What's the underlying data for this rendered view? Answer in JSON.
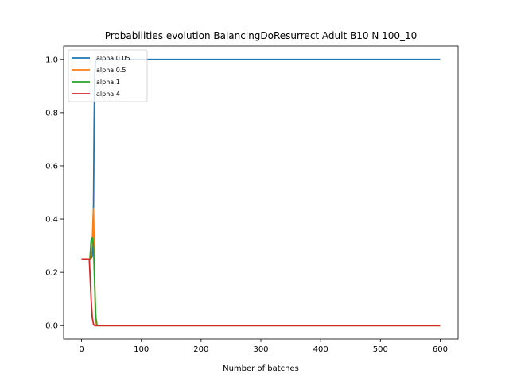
{
  "chart_data": {
    "type": "line",
    "title": "Probabilities evolution BalancingDoResurrect Adult B10 N 100_10",
    "xlabel": "Number of batches",
    "ylabel": "",
    "xlim": [
      -30,
      630
    ],
    "ylim": [
      -0.05,
      1.05
    ],
    "xticks": [
      0,
      100,
      200,
      300,
      400,
      500,
      600
    ],
    "yticks": [
      0.0,
      0.2,
      0.4,
      0.6,
      0.8,
      1.0
    ],
    "xtick_labels": [
      "0",
      "100",
      "200",
      "300",
      "400",
      "500",
      "600"
    ],
    "ytick_labels": [
      "0.0",
      "0.2",
      "0.4",
      "0.6",
      "0.8",
      "1.0"
    ],
    "grid": false,
    "legend": "top-left",
    "series": [
      {
        "name": "alpha 0.05",
        "color": "#1f77b4",
        "x": [
          0,
          15,
          18,
          20,
          21,
          22,
          24,
          30,
          600
        ],
        "y": [
          0.25,
          0.25,
          0.26,
          0.45,
          0.75,
          0.95,
          1.0,
          1.0,
          1.0
        ]
      },
      {
        "name": "alpha 0.5",
        "color": "#ff7f0e",
        "x": [
          0,
          15,
          18,
          20,
          21,
          23,
          25,
          30,
          600
        ],
        "y": [
          0.25,
          0.25,
          0.32,
          0.44,
          0.3,
          0.05,
          0.0,
          0.0,
          0.0
        ]
      },
      {
        "name": "alpha 1",
        "color": "#2ca02c",
        "x": [
          0,
          14,
          16,
          18,
          20,
          22,
          24,
          26,
          30,
          600
        ],
        "y": [
          0.25,
          0.25,
          0.32,
          0.33,
          0.3,
          0.15,
          0.03,
          0.0,
          0.0,
          0.0
        ]
      },
      {
        "name": "alpha 4",
        "color": "#d62728",
        "x": [
          0,
          13,
          14,
          16,
          18,
          20,
          22,
          26,
          30,
          600
        ],
        "y": [
          0.25,
          0.25,
          0.2,
          0.1,
          0.03,
          0.005,
          0.0,
          0.0,
          0.0,
          0.0
        ]
      }
    ]
  }
}
